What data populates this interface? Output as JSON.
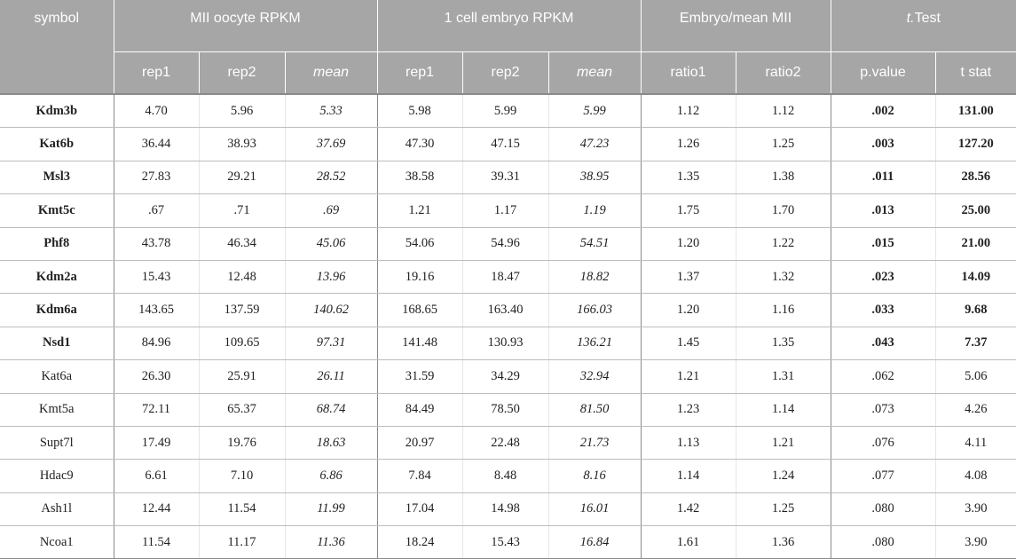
{
  "header": {
    "symbol": "symbol",
    "groups": {
      "mii": "MII oocyte RPKM",
      "embryo": "1 cell embryo RPKM",
      "ratio": "Embryo/mean MII",
      "ttest_t": "t.",
      "ttest_rest": "Test"
    },
    "sub": {
      "rep1": "rep1",
      "rep2": "rep2",
      "mean": "mean",
      "ratio1": "ratio1",
      "ratio2": "ratio2",
      "pvalue": "p.value",
      "tstat": "t stat"
    }
  },
  "rows": [
    {
      "symbol": "Kdm3b",
      "mii_rep1": "4.70",
      "mii_rep2": "5.96",
      "mii_mean": "5.33",
      "emb_rep1": "5.98",
      "emb_rep2": "5.99",
      "emb_mean": "5.99",
      "ratio1": "1.12",
      "ratio2": "1.12",
      "pvalue": ".002",
      "tstat": "131.00",
      "significant": true
    },
    {
      "symbol": "Kat6b",
      "mii_rep1": "36.44",
      "mii_rep2": "38.93",
      "mii_mean": "37.69",
      "emb_rep1": "47.30",
      "emb_rep2": "47.15",
      "emb_mean": "47.23",
      "ratio1": "1.26",
      "ratio2": "1.25",
      "pvalue": ".003",
      "tstat": "127.20",
      "significant": true
    },
    {
      "symbol": "Msl3",
      "mii_rep1": "27.83",
      "mii_rep2": "29.21",
      "mii_mean": "28.52",
      "emb_rep1": "38.58",
      "emb_rep2": "39.31",
      "emb_mean": "38.95",
      "ratio1": "1.35",
      "ratio2": "1.38",
      "pvalue": ".011",
      "tstat": "28.56",
      "significant": true
    },
    {
      "symbol": "Kmt5c",
      "mii_rep1": ".67",
      "mii_rep2": ".71",
      "mii_mean": ".69",
      "emb_rep1": "1.21",
      "emb_rep2": "1.17",
      "emb_mean": "1.19",
      "ratio1": "1.75",
      "ratio2": "1.70",
      "pvalue": ".013",
      "tstat": "25.00",
      "significant": true
    },
    {
      "symbol": "Phf8",
      "mii_rep1": "43.78",
      "mii_rep2": "46.34",
      "mii_mean": "45.06",
      "emb_rep1": "54.06",
      "emb_rep2": "54.96",
      "emb_mean": "54.51",
      "ratio1": "1.20",
      "ratio2": "1.22",
      "pvalue": ".015",
      "tstat": "21.00",
      "significant": true
    },
    {
      "symbol": "Kdm2a",
      "mii_rep1": "15.43",
      "mii_rep2": "12.48",
      "mii_mean": "13.96",
      "emb_rep1": "19.16",
      "emb_rep2": "18.47",
      "emb_mean": "18.82",
      "ratio1": "1.37",
      "ratio2": "1.32",
      "pvalue": ".023",
      "tstat": "14.09",
      "significant": true
    },
    {
      "symbol": "Kdm6a",
      "mii_rep1": "143.65",
      "mii_rep2": "137.59",
      "mii_mean": "140.62",
      "emb_rep1": "168.65",
      "emb_rep2": "163.40",
      "emb_mean": "166.03",
      "ratio1": "1.20",
      "ratio2": "1.16",
      "pvalue": ".033",
      "tstat": "9.68",
      "significant": true
    },
    {
      "symbol": "Nsd1",
      "mii_rep1": "84.96",
      "mii_rep2": "109.65",
      "mii_mean": "97.31",
      "emb_rep1": "141.48",
      "emb_rep2": "130.93",
      "emb_mean": "136.21",
      "ratio1": "1.45",
      "ratio2": "1.35",
      "pvalue": ".043",
      "tstat": "7.37",
      "significant": true
    },
    {
      "symbol": "Kat6a",
      "mii_rep1": "26.30",
      "mii_rep2": "25.91",
      "mii_mean": "26.11",
      "emb_rep1": "31.59",
      "emb_rep2": "34.29",
      "emb_mean": "32.94",
      "ratio1": "1.21",
      "ratio2": "1.31",
      "pvalue": ".062",
      "tstat": "5.06",
      "significant": false
    },
    {
      "symbol": "Kmt5a",
      "mii_rep1": "72.11",
      "mii_rep2": "65.37",
      "mii_mean": "68.74",
      "emb_rep1": "84.49",
      "emb_rep2": "78.50",
      "emb_mean": "81.50",
      "ratio1": "1.23",
      "ratio2": "1.14",
      "pvalue": ".073",
      "tstat": "4.26",
      "significant": false
    },
    {
      "symbol": "Supt7l",
      "mii_rep1": "17.49",
      "mii_rep2": "19.76",
      "mii_mean": "18.63",
      "emb_rep1": "20.97",
      "emb_rep2": "22.48",
      "emb_mean": "21.73",
      "ratio1": "1.13",
      "ratio2": "1.21",
      "pvalue": ".076",
      "tstat": "4.11",
      "significant": false
    },
    {
      "symbol": "Hdac9",
      "mii_rep1": "6.61",
      "mii_rep2": "7.10",
      "mii_mean": "6.86",
      "emb_rep1": "7.84",
      "emb_rep2": "8.48",
      "emb_mean": "8.16",
      "ratio1": "1.14",
      "ratio2": "1.24",
      "pvalue": ".077",
      "tstat": "4.08",
      "significant": false
    },
    {
      "symbol": "Ash1l",
      "mii_rep1": "12.44",
      "mii_rep2": "11.54",
      "mii_mean": "11.99",
      "emb_rep1": "17.04",
      "emb_rep2": "14.98",
      "emb_mean": "16.01",
      "ratio1": "1.42",
      "ratio2": "1.25",
      "pvalue": ".080",
      "tstat": "3.90",
      "significant": false
    },
    {
      "symbol": "Ncoa1",
      "mii_rep1": "11.54",
      "mii_rep2": "11.17",
      "mii_mean": "11.36",
      "emb_rep1": "18.24",
      "emb_rep2": "15.43",
      "emb_mean": "16.84",
      "ratio1": "1.61",
      "ratio2": "1.36",
      "pvalue": ".080",
      "tstat": "3.90",
      "significant": false
    }
  ]
}
